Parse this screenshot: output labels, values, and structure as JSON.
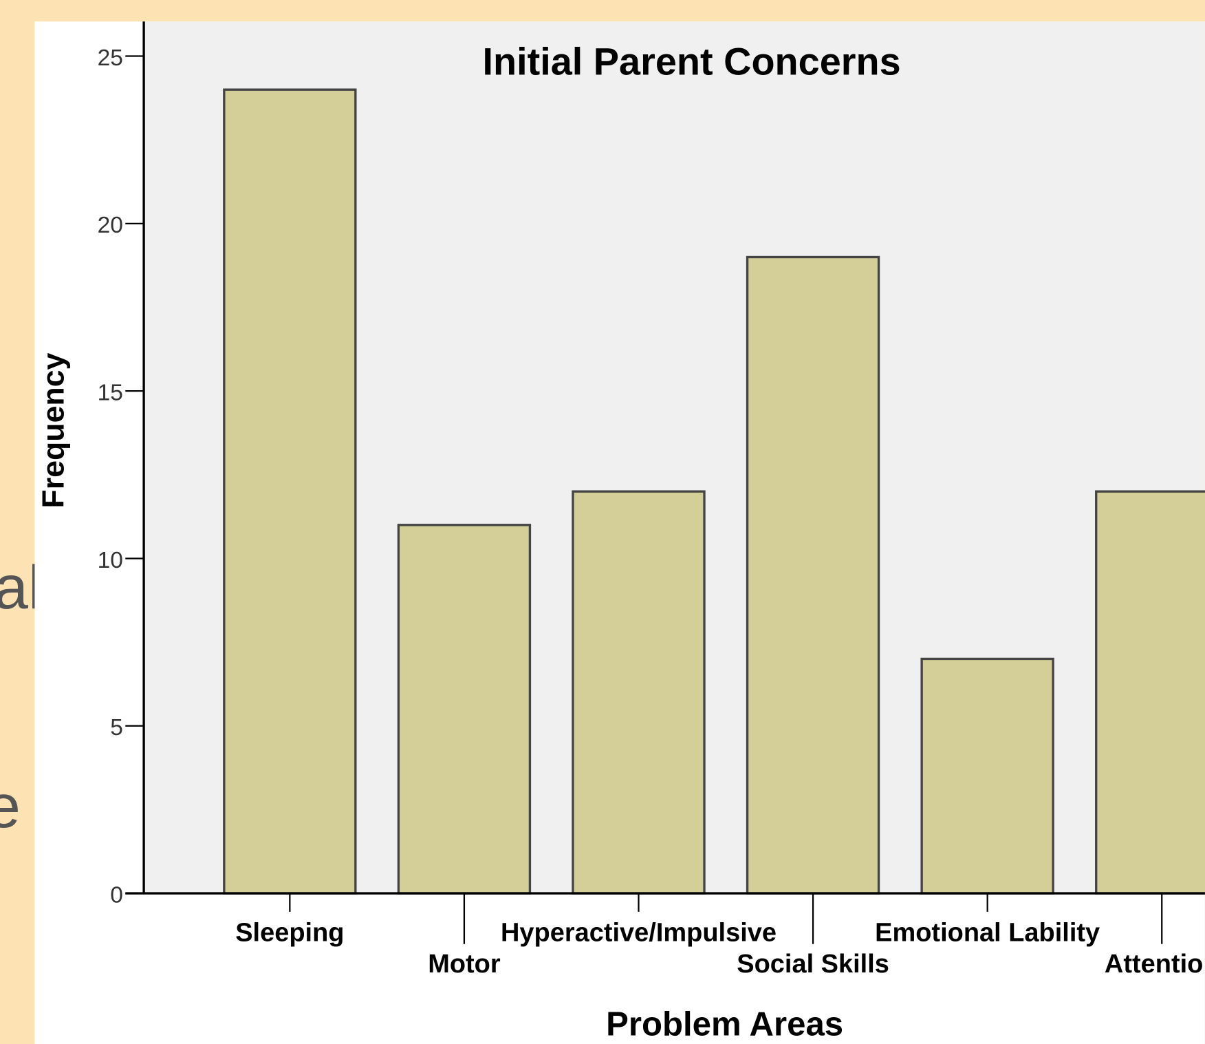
{
  "slide_fragments": [
    "al",
    "e"
  ],
  "chart_data": {
    "type": "bar",
    "title": "Initial Parent Concerns",
    "x_label": "Problem Areas",
    "y_label": "Frequency",
    "categories": [
      "Sleeping",
      "Motor",
      "Hyperactive/Impulsive",
      "Social Skills",
      "Emotional Lability",
      "Attention"
    ],
    "values": [
      24,
      11,
      12,
      19,
      7,
      12
    ],
    "color": "#d4cf98",
    "ylim": [
      0,
      25
    ],
    "yticks": [
      0,
      5,
      10,
      15,
      20,
      25
    ],
    "grid": false
  }
}
